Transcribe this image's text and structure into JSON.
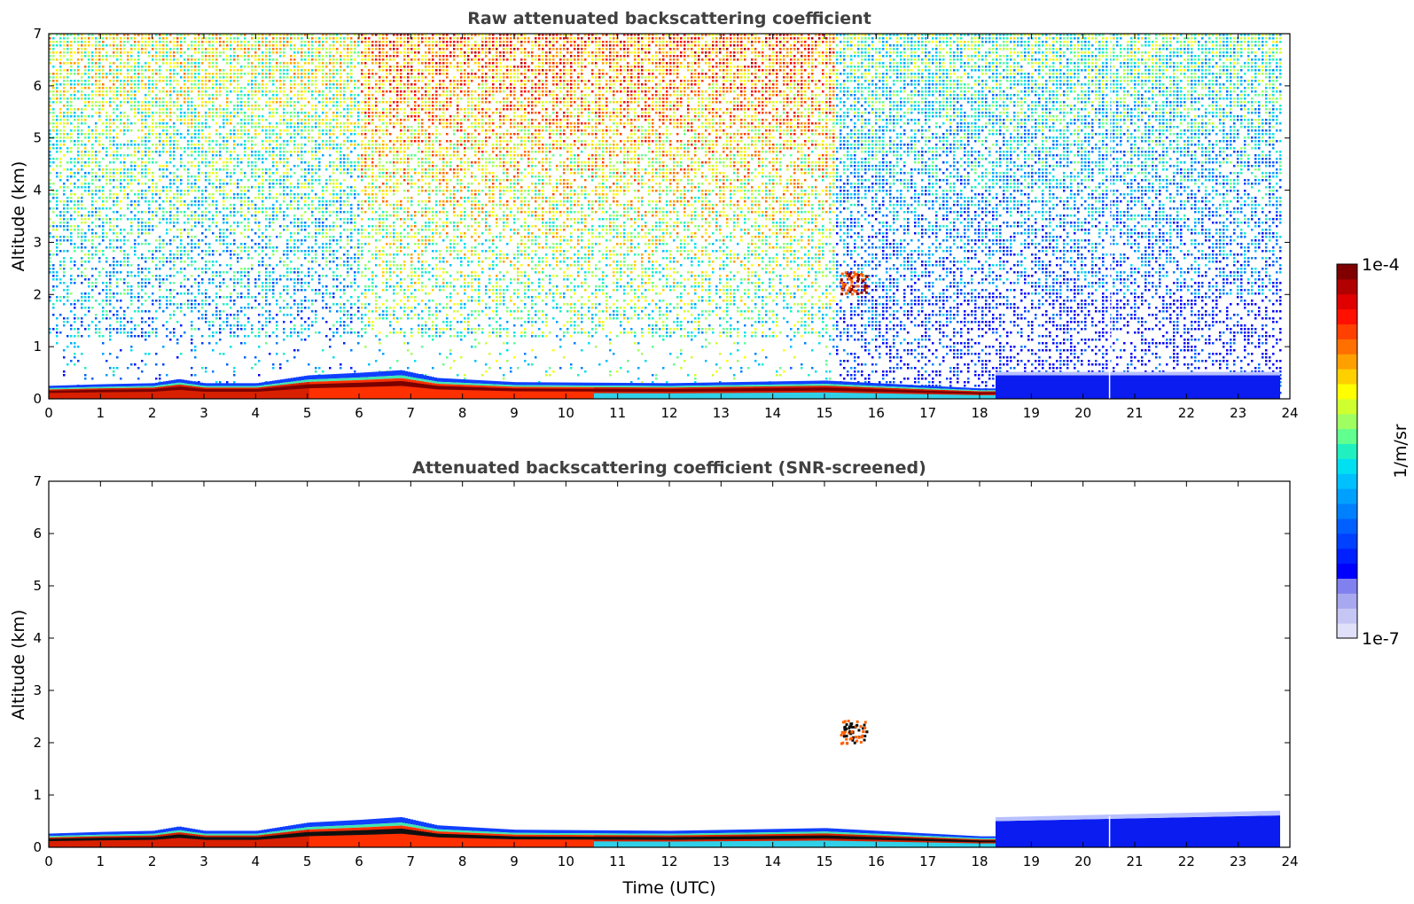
{
  "chart_data": [
    {
      "type": "heatmap",
      "title": "Raw attenuated backscattering coefficient",
      "xlabel": "",
      "ylabel": "Altitude (km)",
      "xlim": [
        0,
        24
      ],
      "ylim": [
        0,
        7
      ],
      "x_ticks": [
        "0",
        "1",
        "2",
        "3",
        "4",
        "5",
        "6",
        "7",
        "8",
        "9",
        "10",
        "11",
        "12",
        "13",
        "14",
        "15",
        "16",
        "17",
        "18",
        "19",
        "20",
        "21",
        "22",
        "23",
        "24"
      ],
      "y_ticks": [
        "0",
        "1",
        "2",
        "3",
        "4",
        "5",
        "6",
        "7"
      ],
      "data_end_time": 23.8,
      "boundary_layer_top_km": [
        [
          0,
          0.25
        ],
        [
          1,
          0.28
        ],
        [
          2,
          0.3
        ],
        [
          2.5,
          0.38
        ],
        [
          3,
          0.3
        ],
        [
          4,
          0.3
        ],
        [
          5,
          0.45
        ],
        [
          6,
          0.5
        ],
        [
          6.8,
          0.55
        ],
        [
          7.5,
          0.4
        ],
        [
          9,
          0.32
        ],
        [
          12,
          0.3
        ],
        [
          15,
          0.35
        ],
        [
          16,
          0.3
        ],
        [
          17,
          0.25
        ],
        [
          18,
          0.2
        ],
        [
          24,
          0.2
        ]
      ],
      "features": [
        {
          "label": "elevated layer",
          "time_range": [
            15.3,
            15.8
          ],
          "altitude_range_km": [
            2.0,
            2.45
          ]
        },
        {
          "label": "low-level high backscatter",
          "time_range": [
            0,
            16.5
          ],
          "altitude_range_km": [
            0,
            0.3
          ]
        },
        {
          "label": "low-signal region",
          "time_range": [
            18.3,
            23.8
          ],
          "altitude_range_km": [
            0,
            0.5
          ]
        }
      ],
      "colorscale": "jet",
      "noise_background": "increasing with altitude; strongest 8–15 UTC above 4 km"
    },
    {
      "type": "heatmap",
      "title": "Attenuated backscattering coefficient (SNR-screened)",
      "xlabel": "Time (UTC)",
      "ylabel": "Altitude (km)",
      "xlim": [
        0,
        24
      ],
      "ylim": [
        0,
        7
      ],
      "x_ticks": [
        "0",
        "1",
        "2",
        "3",
        "4",
        "5",
        "6",
        "7",
        "8",
        "9",
        "10",
        "11",
        "12",
        "13",
        "14",
        "15",
        "16",
        "17",
        "18",
        "19",
        "20",
        "21",
        "22",
        "23",
        "24"
      ],
      "y_ticks": [
        "0",
        "1",
        "2",
        "3",
        "4",
        "5",
        "6",
        "7"
      ],
      "data_end_time": 23.8,
      "features": [
        {
          "label": "boundary layer",
          "time_range": [
            0,
            18.3
          ],
          "altitude_range_km": [
            0,
            0.5
          ]
        },
        {
          "label": "elevated layer",
          "time_range": [
            15.3,
            15.8
          ],
          "altitude_range_km": [
            2.0,
            2.45
          ]
        },
        {
          "label": "low-signal region",
          "time_range": [
            18.3,
            23.8
          ],
          "altitude_range_km": [
            0,
            0.6
          ]
        }
      ],
      "colorscale": "jet"
    }
  ],
  "colorbar": {
    "max_label": "1e-4",
    "min_label": "1e-7",
    "unit_label": "1/m/sr",
    "colors": [
      "#e0e0f8",
      "#c6c6f4",
      "#a8a8f0",
      "#8080ee",
      "#0000ff",
      "#0020ff",
      "#0040ff",
      "#0060ff",
      "#0080ff",
      "#00a0ff",
      "#00c0ff",
      "#00e0f0",
      "#20f0c0",
      "#60ff90",
      "#a0ff60",
      "#d0ff30",
      "#ffff00",
      "#ffd000",
      "#ffa000",
      "#ff7000",
      "#ff4000",
      "#ff1000",
      "#e00000",
      "#b00000",
      "#800000"
    ]
  }
}
